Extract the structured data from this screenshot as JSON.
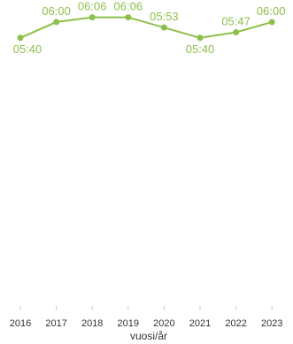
{
  "chart_data": {
    "type": "line",
    "categories": [
      "2016",
      "2017",
      "2018",
      "2019",
      "2020",
      "2021",
      "2022",
      "2023"
    ],
    "series": [
      {
        "values": [
          "05:40",
          "06:00",
          "06:06",
          "06:06",
          "05:53",
          "05:40",
          "05:47",
          "06:00"
        ],
        "color": "#8dc04b"
      }
    ],
    "xlabel": "vuosi/år",
    "ylabel": "",
    "ylim_minutes": [
      0,
      370
    ],
    "grid": false,
    "legend": "none",
    "data_labels": true
  }
}
